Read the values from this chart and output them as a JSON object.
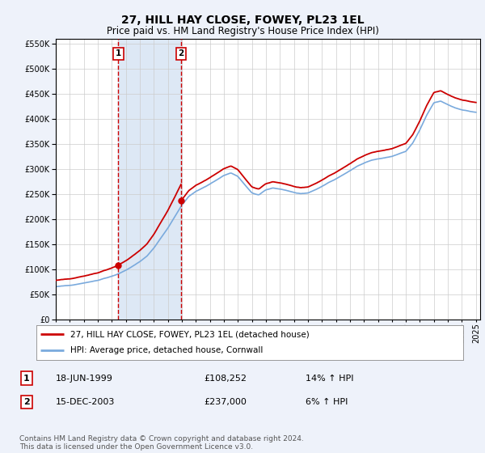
{
  "title": "27, HILL HAY CLOSE, FOWEY, PL23 1EL",
  "subtitle": "Price paid vs. HM Land Registry's House Price Index (HPI)",
  "legend_line1": "27, HILL HAY CLOSE, FOWEY, PL23 1EL (detached house)",
  "legend_line2": "HPI: Average price, detached house, Cornwall",
  "footer": "Contains HM Land Registry data © Crown copyright and database right 2024.\nThis data is licensed under the Open Government Licence v3.0.",
  "sale1_date": "18-JUN-1999",
  "sale1_price": 108252,
  "sale1_price_str": "£108,252",
  "sale1_hpi": "14% ↑ HPI",
  "sale1_x": 1999.46,
  "sale2_date": "15-DEC-2003",
  "sale2_price": 237000,
  "sale2_price_str": "£237,000",
  "sale2_hpi": "6% ↑ HPI",
  "sale2_x": 2003.96,
  "hpi_color": "#7aaadd",
  "price_color": "#cc0000",
  "bg_color": "#eef2fa",
  "plot_bg": "#ffffff",
  "marker_color": "#cc0000",
  "vline_color": "#cc0000",
  "highlight_color": "#dde8f5",
  "grid_color": "#cccccc",
  "ylim": [
    0,
    560000
  ],
  "yticks": [
    0,
    50000,
    100000,
    150000,
    200000,
    250000,
    300000,
    350000,
    400000,
    450000,
    500000,
    550000
  ],
  "xlim_start": 1995,
  "xlim_end": 2025.3,
  "title_fontsize": 10,
  "subtitle_fontsize": 8.5,
  "tick_fontsize": 7,
  "legend_fontsize": 7.5,
  "table_fontsize": 8,
  "footer_fontsize": 6.5
}
